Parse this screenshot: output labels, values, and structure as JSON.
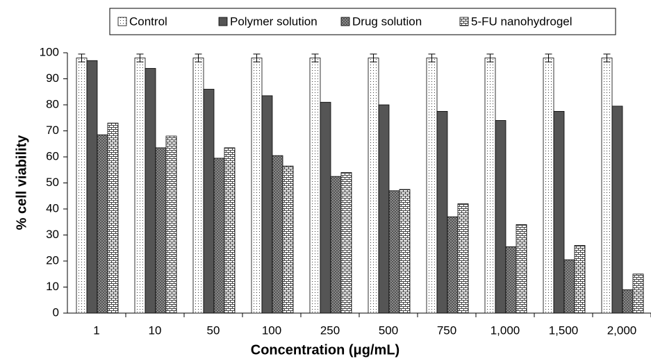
{
  "chart_data": {
    "type": "bar",
    "categories": [
      "1",
      "10",
      "50",
      "100",
      "250",
      "500",
      "750",
      "1,000",
      "1,500",
      "2,000"
    ],
    "series": [
      {
        "name": "Control",
        "color": "#ffffff",
        "pattern": "dots",
        "values": [
          98,
          98,
          98,
          98,
          98,
          98,
          98,
          98,
          98,
          98
        ],
        "errors": [
          1.5,
          1.5,
          1.5,
          1.5,
          1.5,
          1.5,
          1.5,
          1.5,
          1.5,
          1.5
        ]
      },
      {
        "name": "Polymer solution",
        "color": "#555555",
        "pattern": "solid",
        "values": [
          97,
          94,
          86,
          83.5,
          81,
          80,
          77.5,
          74,
          77.5,
          79.5
        ]
      },
      {
        "name": "Drug solution",
        "color": "#8a8a8a",
        "pattern": "checker",
        "values": [
          68.5,
          63.5,
          59.5,
          60.5,
          52.5,
          47,
          37,
          25.5,
          20.5,
          9
        ]
      },
      {
        "name": "5-FU nanohydrogel",
        "color": "#ffffff",
        "pattern": "brick",
        "values": [
          73,
          68,
          63.5,
          56.5,
          54,
          47.5,
          42,
          34,
          26,
          15
        ]
      }
    ],
    "xlabel": "Concentration (μg/mL)",
    "ylabel": "% cell viability",
    "ylim": [
      0,
      100
    ],
    "yticks": [
      0,
      10,
      20,
      30,
      40,
      50,
      60,
      70,
      80,
      90,
      100
    ],
    "legend": "top"
  }
}
